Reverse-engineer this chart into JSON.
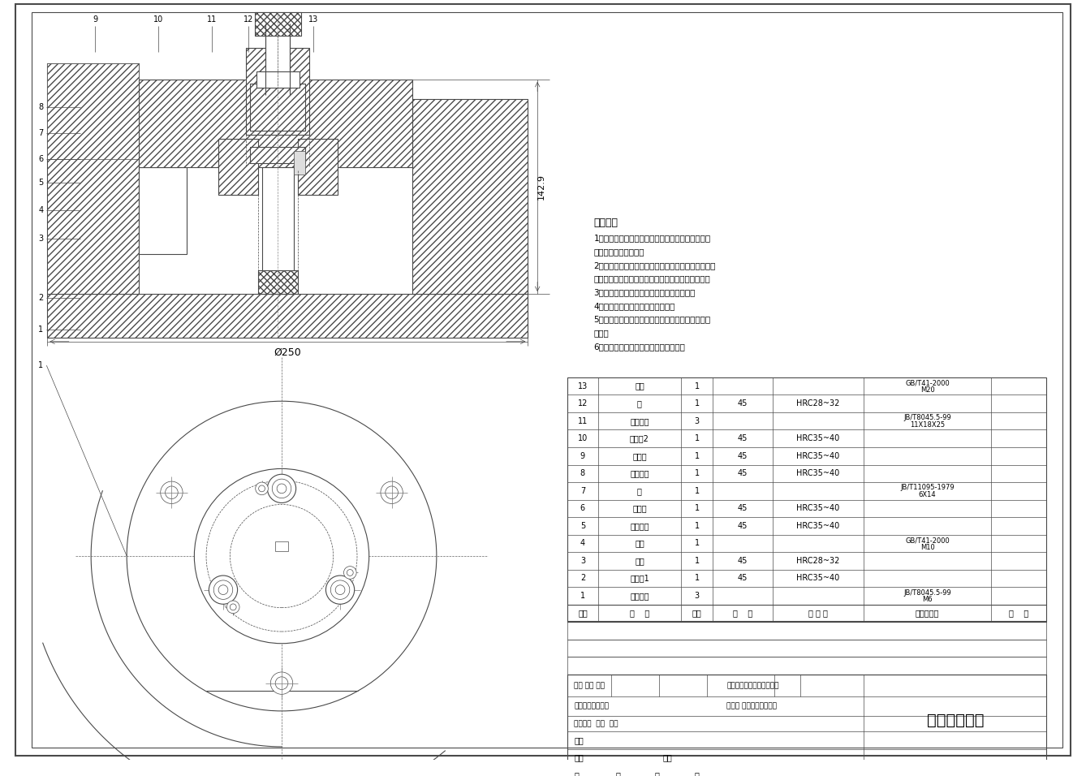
{
  "line_color": "#4a4a4a",
  "thin_line": 0.5,
  "medium_line": 0.8,
  "thick_line": 1.5,
  "title_box_text": "钻孔镗平面夹",
  "tech_req_title": "技术要求",
  "tech_req_lines": [
    "1、所有零部件（包括外购、外协件）必须具有检验",
    "合格证方能进行装配。",
    "2、零件在装配前必须清理和清洗干净，不得有毛刺、",
    "飞边、氧化皮、锈蚀、切屑、砂粒、灰尘和油污等。",
    "3、装配过程中零件不得磕碰、划伤和锈蚀。",
    "4、油漆未干的零件不得进行装配。",
    "5、相对运动的零件，装配时接触面间应加润滑油（",
    "脂）。",
    "6、各零、部件装配后相对位置应准确。"
  ],
  "bom_rows": [
    [
      "13",
      "螺母",
      "1",
      "",
      "",
      "GB/T41-2000\nM20",
      ""
    ],
    [
      "12",
      "垫",
      "1",
      "45",
      "HRC28~32",
      "",
      ""
    ],
    [
      "11",
      "快换钻套",
      "3",
      "",
      "",
      "JB/T8045.5-99\n11X18X25",
      ""
    ],
    [
      "10",
      "定位套2",
      "1",
      "45",
      "HRC35~40",
      "",
      ""
    ],
    [
      "9",
      "定位柱",
      "1",
      "45",
      "HRC35~40",
      "",
      ""
    ],
    [
      "8",
      "上定位轴",
      "1",
      "45",
      "HRC35~40",
      "",
      ""
    ],
    [
      "7",
      "键",
      "1",
      "",
      "",
      "JB/T11095-1979\n6X14",
      ""
    ],
    [
      "6",
      "钻模板",
      "1",
      "45",
      "HRC35~40",
      "",
      ""
    ],
    [
      "5",
      "下定位轴",
      "1",
      "45",
      "HRC35~40",
      "",
      ""
    ],
    [
      "4",
      "螺母",
      "1",
      "",
      "",
      "GB/T41-2000\nM10",
      ""
    ],
    [
      "3",
      "底板",
      "1",
      "45",
      "HRC28~32",
      "",
      ""
    ],
    [
      "2",
      "定位套1",
      "1",
      "45",
      "HRC35~40",
      "",
      ""
    ],
    [
      "1",
      "钻套螺钉",
      "3",
      "",
      "",
      "JB/T8045.5-99\nM6",
      ""
    ]
  ],
  "bom_header": [
    "序号",
    "名    称",
    "数量",
    "材    料",
    "热 处 理",
    "标准件代号",
    "备    注"
  ]
}
